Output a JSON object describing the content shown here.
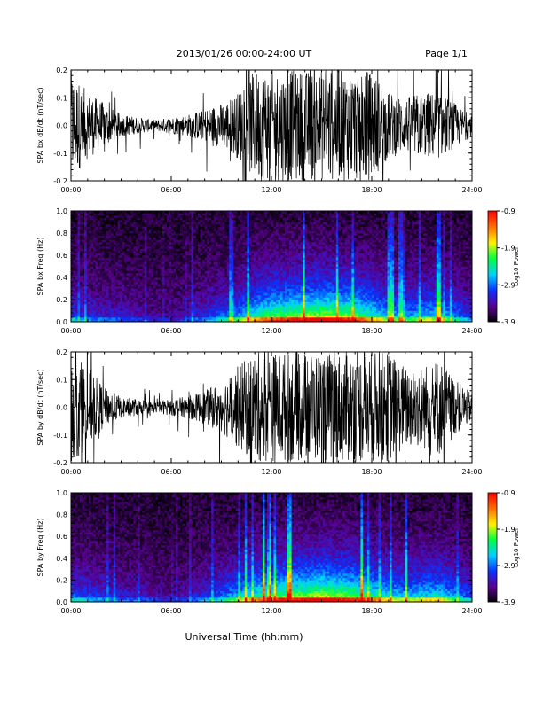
{
  "header": {
    "title": "2013/01/26  00:00-24:00 UT",
    "page": "Page 1/1"
  },
  "xlabel": "Universal Time (hh:mm)",
  "colors": {
    "trace": "#000000",
    "colormap": [
      "#000000",
      "#5a0090",
      "#0a32ff",
      "#00d0ff",
      "#00ff40",
      "#fff200",
      "#ff7000",
      "#ff0000"
    ]
  },
  "chart_data": [
    {
      "type": "line",
      "ylabel": "SPA bx dB/dt (nT/sec)",
      "xlim": [
        0,
        24
      ],
      "ylim": [
        -0.2,
        0.2
      ],
      "xticks": [
        "00:00",
        "06:00",
        "12:00",
        "18:00",
        "24:00"
      ],
      "yticks": [
        "-0.2",
        "-0.1",
        "0.0",
        "0.1",
        "0.2"
      ],
      "envelope": {
        "hours": [
          0,
          1,
          2,
          3,
          4,
          5,
          6,
          7,
          8,
          9,
          10,
          11,
          12,
          13,
          14,
          15,
          16,
          17,
          18,
          19,
          20,
          21,
          22,
          23,
          24
        ],
        "amplitude": [
          0.2,
          0.12,
          0.08,
          0.04,
          0.03,
          0.02,
          0.03,
          0.04,
          0.06,
          0.08,
          0.12,
          0.2,
          0.2,
          0.2,
          0.2,
          0.2,
          0.2,
          0.2,
          0.2,
          0.12,
          0.1,
          0.12,
          0.12,
          0.08,
          0.04
        ]
      }
    },
    {
      "type": "heatmap",
      "ylabel": "SPA bx Freq (Hz)",
      "xlim": [
        0,
        24
      ],
      "ylim": [
        0,
        1.0
      ],
      "xticks": [
        "00:00",
        "06:00",
        "12:00",
        "18:00",
        "24:00"
      ],
      "yticks": [
        "0.0",
        "0.2",
        "0.4",
        "0.6",
        "0.8",
        "1.0"
      ],
      "colorbar": {
        "label": "Log10 Power",
        "range": [
          -3.9,
          -0.9
        ],
        "ticks": [
          "-0.9",
          "-1.9",
          "-2.9",
          "-3.9"
        ]
      },
      "activity": {
        "hours": [
          0,
          1,
          2,
          3,
          4,
          5,
          6,
          7,
          8,
          9,
          10,
          11,
          12,
          13,
          14,
          15,
          16,
          17,
          18,
          19,
          20,
          21,
          22,
          23,
          24
        ],
        "level": [
          0.35,
          0.3,
          0.25,
          0.25,
          0.2,
          0.15,
          0.15,
          0.2,
          0.3,
          0.4,
          0.5,
          0.7,
          0.8,
          0.85,
          0.9,
          0.95,
          0.9,
          0.85,
          0.7,
          0.55,
          0.5,
          0.55,
          0.6,
          0.45,
          0.3
        ]
      }
    },
    {
      "type": "line",
      "ylabel": "SPA by dB/dt (nT/sec)",
      "xlim": [
        0,
        24
      ],
      "ylim": [
        -0.2,
        0.2
      ],
      "xticks": [
        "00:00",
        "06:00",
        "12:00",
        "18:00",
        "24:00"
      ],
      "yticks": [
        "-0.2",
        "-0.1",
        "0.0",
        "0.1",
        "0.2"
      ],
      "envelope": {
        "hours": [
          0,
          1,
          2,
          3,
          4,
          5,
          6,
          7,
          8,
          9,
          10,
          11,
          12,
          13,
          14,
          15,
          16,
          17,
          18,
          19,
          20,
          21,
          22,
          23,
          24
        ],
        "amplitude": [
          0.2,
          0.15,
          0.07,
          0.04,
          0.03,
          0.02,
          0.03,
          0.04,
          0.06,
          0.09,
          0.15,
          0.2,
          0.2,
          0.2,
          0.2,
          0.2,
          0.2,
          0.2,
          0.2,
          0.2,
          0.15,
          0.15,
          0.18,
          0.1,
          0.05
        ]
      }
    },
    {
      "type": "heatmap",
      "ylabel": "SPA by Freq (Hz)",
      "xlim": [
        0,
        24
      ],
      "ylim": [
        0,
        1.0
      ],
      "xticks": [
        "00:00",
        "06:00",
        "12:00",
        "18:00",
        "24:00"
      ],
      "yticks": [
        "0.0",
        "0.2",
        "0.4",
        "0.6",
        "0.8",
        "1.0"
      ],
      "colorbar": {
        "label": "Log10 Power",
        "range": [
          -3.9,
          -0.9
        ],
        "ticks": [
          "-0.9",
          "-1.9",
          "-2.9",
          "-3.9"
        ]
      },
      "activity": {
        "hours": [
          0,
          1,
          2,
          3,
          4,
          5,
          6,
          7,
          8,
          9,
          10,
          11,
          12,
          13,
          14,
          15,
          16,
          17,
          18,
          19,
          20,
          21,
          22,
          23,
          24
        ],
        "level": [
          0.4,
          0.35,
          0.3,
          0.25,
          0.25,
          0.2,
          0.15,
          0.2,
          0.3,
          0.4,
          0.55,
          0.7,
          0.8,
          0.85,
          0.9,
          0.95,
          0.9,
          0.85,
          0.75,
          0.6,
          0.55,
          0.6,
          0.65,
          0.5,
          0.35
        ]
      }
    }
  ]
}
